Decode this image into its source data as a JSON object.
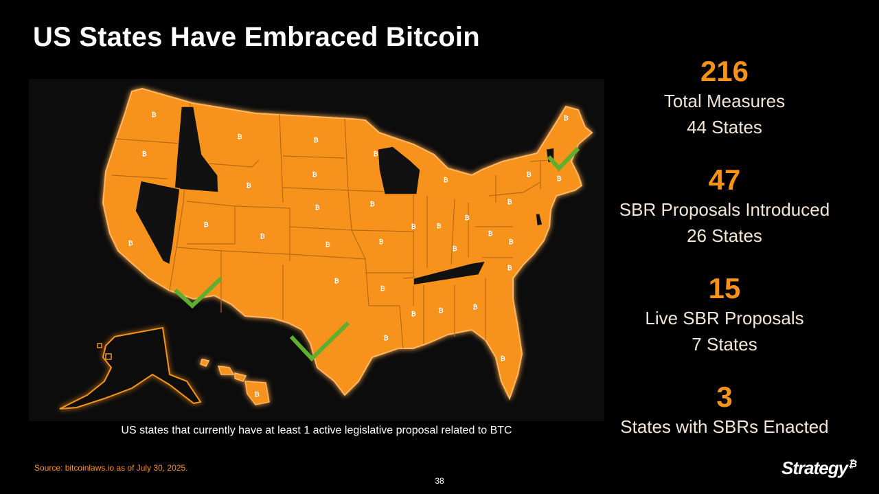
{
  "title": "US States Have Embraced Bitcoin",
  "caption": "US states that currently have at least 1 active legislative proposal related to BTC",
  "source": "Source: bitcoinlaws.io as of July 30, 2025.",
  "page_number": "38",
  "logo": {
    "text": "Strategy",
    "symbol": "₿"
  },
  "colors": {
    "accent": "#f7931a",
    "state_fill": "#f7931a",
    "no_measure_fill": "#111111",
    "enacted_check": "#5fae2e",
    "background": "#000000"
  },
  "stats": [
    {
      "number": "216",
      "lines": [
        "Total Measures",
        "44 States"
      ]
    },
    {
      "number": "47",
      "lines": [
        "SBR Proposals Introduced",
        "26 States"
      ]
    },
    {
      "number": "15",
      "lines": [
        "Live SBR Proposals",
        "7 States"
      ]
    },
    {
      "number": "3",
      "lines": [
        "States with SBRs Enacted"
      ]
    }
  ],
  "map": {
    "marker_glyph": "₿",
    "states_without_measures": [
      "Idaho",
      "Nevada",
      "Wisconsin",
      "Tennessee",
      "Delaware",
      "Vermont"
    ],
    "states_with_sbr_enacted": [
      "Arizona",
      "Texas",
      "New Hampshire"
    ]
  }
}
